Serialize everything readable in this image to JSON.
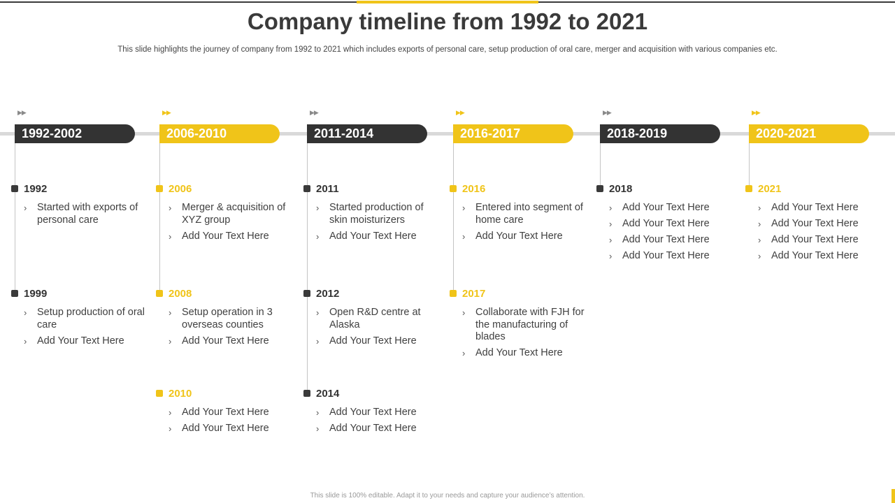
{
  "title": "Company timeline from 1992 to 2021",
  "subtitle": "This slide highlights the journey of company from 1992 to 2021 which includes exports of personal care, setup production of oral care, merger and acquisition with various companies etc.",
  "footer": "This slide is 100% editable. Adapt it to your needs and capture your audience’s attention.",
  "colors": {
    "dark": "#333333",
    "accent": "#f0c419",
    "rail": "#d9d9d9"
  },
  "chevron_glyph": "▶▶",
  "bullet_glyph": "›",
  "periods": [
    {
      "label": "1992-2002",
      "theme": "dark",
      "entries": [
        {
          "year": "1992",
          "bullets": [
            "Started with exports of personal care"
          ]
        },
        {
          "year": "1999",
          "bullets": [
            "Setup production of oral care",
            "Add Your Text Here"
          ]
        }
      ]
    },
    {
      "label": "2006-2010",
      "theme": "yellow",
      "entries": [
        {
          "year": "2006",
          "bullets": [
            "Merger & acquisition of XYZ group",
            "Add Your Text Here"
          ]
        },
        {
          "year": "2008",
          "bullets": [
            "Setup operation in 3 overseas counties",
            "Add Your Text Here"
          ]
        },
        {
          "year": "2010",
          "bullets": [
            "Add Your Text Here",
            "Add Your Text Here"
          ]
        }
      ]
    },
    {
      "label": "2011-2014",
      "theme": "dark",
      "entries": [
        {
          "year": "2011",
          "bullets": [
            "Started production of skin moisturizers",
            "Add Your Text Here"
          ]
        },
        {
          "year": "2012",
          "bullets": [
            "Open R&D centre at Alaska",
            "Add Your Text Here"
          ]
        },
        {
          "year": "2014",
          "bullets": [
            "Add Your Text Here",
            "Add Your Text Here"
          ]
        }
      ]
    },
    {
      "label": "2016-2017",
      "theme": "yellow",
      "entries": [
        {
          "year": "2016",
          "bullets": [
            "Entered into segment of home care",
            "Add Your Text Here"
          ]
        },
        {
          "year": "2017",
          "bullets": [
            "Collaborate with FJH for the manufacturing of blades",
            "Add Your Text Here"
          ]
        }
      ]
    },
    {
      "label": "2018-2019",
      "theme": "dark",
      "entries": [
        {
          "year": "2018",
          "bullets": [
            "Add Your Text Here",
            "Add Your Text Here",
            "Add Your Text Here",
            "Add Your Text Here"
          ]
        }
      ]
    },
    {
      "label": "2020-2021",
      "theme": "yellow",
      "entries": [
        {
          "year": "2021",
          "bullets": [
            "Add Your Text Here",
            "Add Your Text Here",
            "Add Your Text Here",
            "Add Your Text Here"
          ]
        }
      ]
    }
  ]
}
